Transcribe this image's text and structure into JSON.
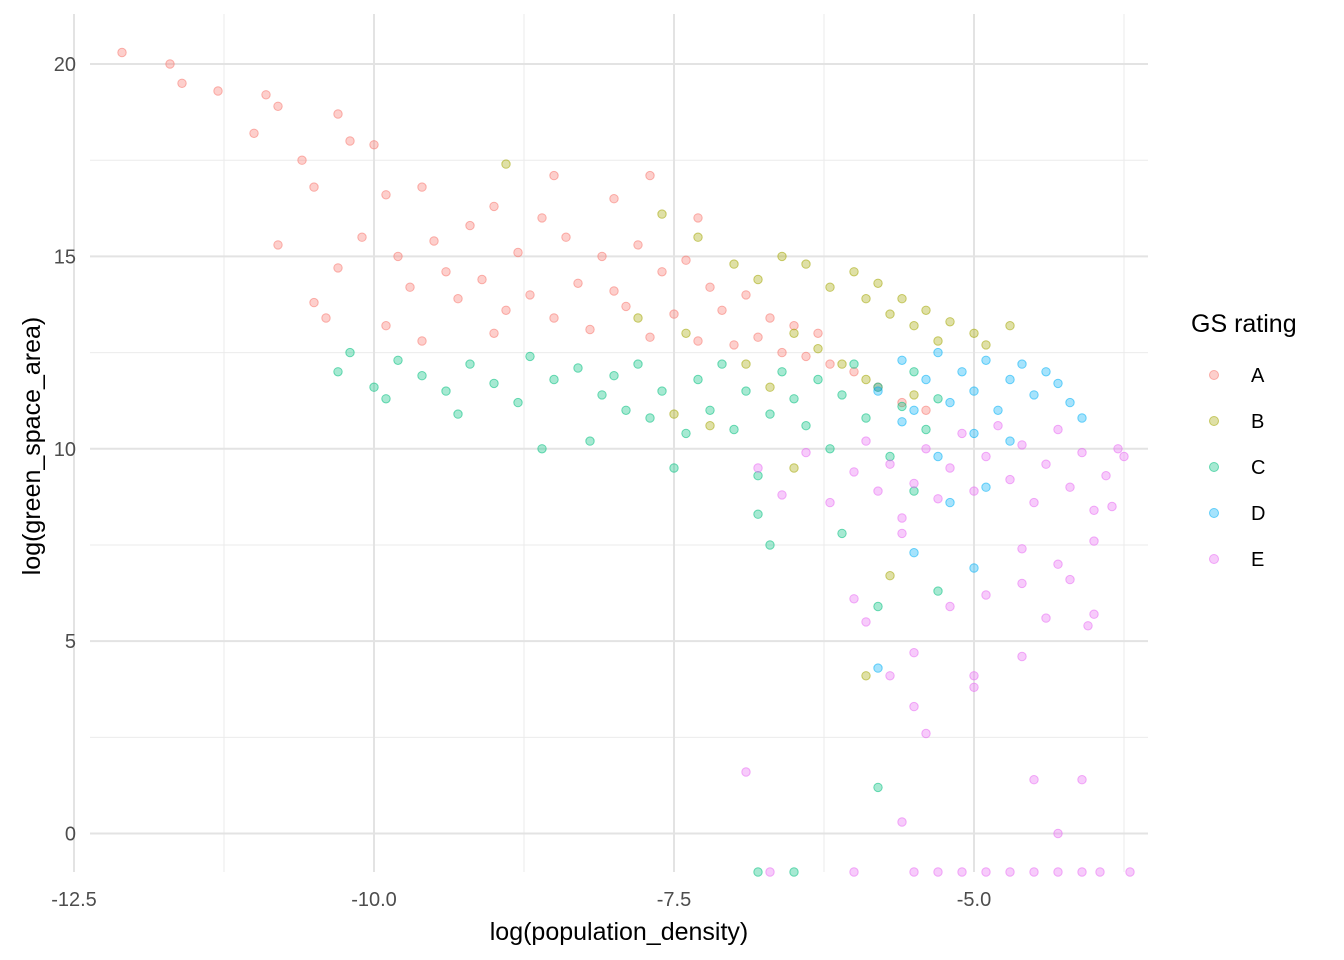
{
  "chart_data": {
    "type": "scatter",
    "xlabel": "log(population_density)",
    "ylabel": "log(green_space_area)",
    "xlim": [
      -12.6,
      -3.55
    ],
    "ylim": [
      -1.0,
      21.3
    ],
    "x_ticks": [
      -12.5,
      -10.0,
      -7.5,
      -5.0
    ],
    "x_tick_labels": [
      "-12.5",
      "-10.0",
      "-7.5",
      "-5.0"
    ],
    "y_ticks": [
      0,
      5,
      10,
      15,
      20
    ],
    "y_tick_labels": [
      "0",
      "5",
      "10",
      "15",
      "20"
    ],
    "grid": true,
    "legend_title": "GS rating",
    "legend_position": "right",
    "point_alpha": 0.35,
    "series": [
      {
        "name": "A",
        "color": "#F8766D",
        "points": [
          [
            -12.1,
            20.3
          ],
          [
            -11.7,
            20.0
          ],
          [
            -11.6,
            19.5
          ],
          [
            -11.3,
            19.3
          ],
          [
            -11.0,
            18.2
          ],
          [
            -10.9,
            19.2
          ],
          [
            -10.8,
            18.9
          ],
          [
            -10.8,
            15.3
          ],
          [
            -10.6,
            17.5
          ],
          [
            -10.5,
            16.8
          ],
          [
            -10.3,
            18.7
          ],
          [
            -10.2,
            18.0
          ],
          [
            -10.0,
            17.9
          ],
          [
            -10.1,
            15.5
          ],
          [
            -10.3,
            14.7
          ],
          [
            -10.5,
            13.8
          ],
          [
            -9.9,
            16.6
          ],
          [
            -9.8,
            15.0
          ],
          [
            -9.7,
            14.2
          ],
          [
            -9.6,
            16.8
          ],
          [
            -9.5,
            15.4
          ],
          [
            -9.4,
            14.6
          ],
          [
            -9.3,
            13.9
          ],
          [
            -9.2,
            15.8
          ],
          [
            -9.1,
            14.4
          ],
          [
            -9.0,
            16.3
          ],
          [
            -8.9,
            13.6
          ],
          [
            -8.8,
            15.1
          ],
          [
            -8.7,
            14.0
          ],
          [
            -8.6,
            16.0
          ],
          [
            -8.5,
            13.4
          ],
          [
            -8.4,
            15.5
          ],
          [
            -8.3,
            14.3
          ],
          [
            -8.2,
            13.1
          ],
          [
            -8.1,
            15.0
          ],
          [
            -8.0,
            14.1
          ],
          [
            -7.9,
            13.7
          ],
          [
            -7.8,
            15.3
          ],
          [
            -7.7,
            12.9
          ],
          [
            -7.6,
            14.6
          ],
          [
            -7.5,
            13.5
          ],
          [
            -7.4,
            14.9
          ],
          [
            -7.3,
            12.8
          ],
          [
            -7.2,
            14.2
          ],
          [
            -7.1,
            13.6
          ],
          [
            -7.0,
            12.7
          ],
          [
            -6.9,
            14.0
          ],
          [
            -6.8,
            12.9
          ],
          [
            -6.7,
            13.4
          ],
          [
            -6.6,
            12.5
          ],
          [
            -6.5,
            13.2
          ],
          [
            -6.4,
            12.4
          ],
          [
            -6.3,
            13.0
          ],
          [
            -6.2,
            12.2
          ],
          [
            -6.0,
            12.0
          ],
          [
            -5.8,
            11.6
          ],
          [
            -5.6,
            11.2
          ],
          [
            -5.4,
            11.0
          ],
          [
            -9.6,
            12.8
          ],
          [
            -9.0,
            13.0
          ],
          [
            -8.5,
            17.1
          ],
          [
            -8.0,
            16.5
          ],
          [
            -7.7,
            17.1
          ],
          [
            -7.3,
            16.0
          ],
          [
            -9.9,
            13.2
          ],
          [
            -10.4,
            13.4
          ]
        ]
      },
      {
        "name": "B",
        "color": "#A3A500",
        "points": [
          [
            -8.9,
            17.4
          ],
          [
            -7.6,
            16.1
          ],
          [
            -7.3,
            15.5
          ],
          [
            -7.0,
            14.8
          ],
          [
            -6.8,
            14.4
          ],
          [
            -6.6,
            15.0
          ],
          [
            -6.4,
            14.8
          ],
          [
            -6.2,
            14.2
          ],
          [
            -6.0,
            14.6
          ],
          [
            -5.9,
            13.9
          ],
          [
            -5.8,
            14.3
          ],
          [
            -5.7,
            13.5
          ],
          [
            -5.6,
            13.9
          ],
          [
            -5.5,
            13.2
          ],
          [
            -5.4,
            13.6
          ],
          [
            -5.3,
            12.8
          ],
          [
            -5.2,
            13.3
          ],
          [
            -5.0,
            13.0
          ],
          [
            -4.9,
            12.7
          ],
          [
            -4.7,
            13.2
          ],
          [
            -6.5,
            13.0
          ],
          [
            -6.3,
            12.6
          ],
          [
            -6.1,
            12.2
          ],
          [
            -5.9,
            11.8
          ],
          [
            -7.8,
            13.4
          ],
          [
            -7.4,
            13.0
          ],
          [
            -7.2,
            10.6
          ],
          [
            -6.7,
            11.6
          ],
          [
            -6.5,
            9.5
          ],
          [
            -5.7,
            6.7
          ],
          [
            -5.9,
            4.1
          ],
          [
            -7.5,
            10.9
          ],
          [
            -6.9,
            12.2
          ],
          [
            -5.5,
            11.4
          ]
        ]
      },
      {
        "name": "C",
        "color": "#00BF7D",
        "points": [
          [
            -10.3,
            12.0
          ],
          [
            -10.2,
            12.5
          ],
          [
            -10.0,
            11.6
          ],
          [
            -9.9,
            11.3
          ],
          [
            -9.8,
            12.3
          ],
          [
            -9.6,
            11.9
          ],
          [
            -9.4,
            11.5
          ],
          [
            -9.3,
            10.9
          ],
          [
            -9.2,
            12.2
          ],
          [
            -9.0,
            11.7
          ],
          [
            -8.8,
            11.2
          ],
          [
            -8.7,
            12.4
          ],
          [
            -8.6,
            10.0
          ],
          [
            -8.5,
            11.8
          ],
          [
            -8.3,
            12.1
          ],
          [
            -8.2,
            10.2
          ],
          [
            -8.1,
            11.4
          ],
          [
            -8.0,
            11.9
          ],
          [
            -7.9,
            11.0
          ],
          [
            -7.8,
            12.2
          ],
          [
            -7.7,
            10.8
          ],
          [
            -7.6,
            11.5
          ],
          [
            -7.5,
            9.5
          ],
          [
            -7.4,
            10.4
          ],
          [
            -7.3,
            11.8
          ],
          [
            -7.2,
            11.0
          ],
          [
            -7.1,
            12.2
          ],
          [
            -7.0,
            10.5
          ],
          [
            -6.9,
            11.5
          ],
          [
            -6.8,
            9.3
          ],
          [
            -6.7,
            10.9
          ],
          [
            -6.6,
            12.0
          ],
          [
            -6.5,
            11.3
          ],
          [
            -6.4,
            10.6
          ],
          [
            -6.3,
            11.8
          ],
          [
            -6.2,
            10.0
          ],
          [
            -6.1,
            11.4
          ],
          [
            -6.0,
            12.2
          ],
          [
            -5.9,
            10.8
          ],
          [
            -5.8,
            11.6
          ],
          [
            -5.7,
            9.8
          ],
          [
            -5.6,
            11.1
          ],
          [
            -5.5,
            12.0
          ],
          [
            -5.4,
            10.5
          ],
          [
            -5.3,
            11.3
          ],
          [
            -6.8,
            8.3
          ],
          [
            -6.7,
            7.5
          ],
          [
            -6.1,
            7.8
          ],
          [
            -5.8,
            5.9
          ],
          [
            -5.3,
            6.3
          ],
          [
            -5.8,
            1.2
          ],
          [
            -6.8,
            -1.0
          ],
          [
            -6.5,
            -1.0
          ],
          [
            -5.5,
            8.9
          ]
        ]
      },
      {
        "name": "D",
        "color": "#00B0F6",
        "points": [
          [
            -5.8,
            11.5
          ],
          [
            -5.6,
            12.3
          ],
          [
            -5.5,
            11.0
          ],
          [
            -5.4,
            11.8
          ],
          [
            -5.3,
            12.5
          ],
          [
            -5.2,
            11.2
          ],
          [
            -5.1,
            12.0
          ],
          [
            -5.0,
            11.5
          ],
          [
            -4.9,
            12.3
          ],
          [
            -4.8,
            11.0
          ],
          [
            -4.7,
            11.8
          ],
          [
            -4.6,
            12.2
          ],
          [
            -4.5,
            11.4
          ],
          [
            -4.4,
            12.0
          ],
          [
            -4.3,
            11.7
          ],
          [
            -4.2,
            11.2
          ],
          [
            -4.1,
            10.8
          ],
          [
            -5.0,
            10.4
          ],
          [
            -5.3,
            9.8
          ],
          [
            -4.9,
            9.0
          ],
          [
            -5.5,
            7.3
          ],
          [
            -5.0,
            6.9
          ],
          [
            -5.8,
            4.3
          ],
          [
            -5.2,
            8.6
          ],
          [
            -4.7,
            10.2
          ],
          [
            -5.6,
            10.7
          ]
        ]
      },
      {
        "name": "E",
        "color": "#E76BF3",
        "points": [
          [
            -6.8,
            9.5
          ],
          [
            -6.6,
            8.8
          ],
          [
            -6.4,
            9.9
          ],
          [
            -6.2,
            8.6
          ],
          [
            -6.0,
            9.4
          ],
          [
            -5.9,
            10.2
          ],
          [
            -5.8,
            8.9
          ],
          [
            -5.7,
            9.6
          ],
          [
            -5.6,
            8.2
          ],
          [
            -5.5,
            9.1
          ],
          [
            -5.4,
            10.0
          ],
          [
            -5.3,
            8.7
          ],
          [
            -5.2,
            9.5
          ],
          [
            -5.1,
            10.4
          ],
          [
            -5.0,
            8.9
          ],
          [
            -4.9,
            9.8
          ],
          [
            -4.8,
            10.6
          ],
          [
            -4.7,
            9.2
          ],
          [
            -4.6,
            10.1
          ],
          [
            -4.5,
            8.6
          ],
          [
            -4.4,
            9.6
          ],
          [
            -4.3,
            10.5
          ],
          [
            -4.2,
            9.0
          ],
          [
            -4.1,
            9.9
          ],
          [
            -4.0,
            8.4
          ],
          [
            -3.9,
            9.3
          ],
          [
            -3.8,
            10.0
          ],
          [
            -3.75,
            9.8
          ],
          [
            -3.85,
            8.5
          ],
          [
            -4.0,
            7.6
          ],
          [
            -4.3,
            7.0
          ],
          [
            -4.6,
            6.5
          ],
          [
            -4.9,
            6.2
          ],
          [
            -5.2,
            5.9
          ],
          [
            -4.4,
            5.6
          ],
          [
            -4.05,
            5.4
          ],
          [
            -4.0,
            5.7
          ],
          [
            -4.6,
            4.6
          ],
          [
            -5.0,
            4.1
          ],
          [
            -5.0,
            3.8
          ],
          [
            -5.5,
            4.7
          ],
          [
            -5.5,
            3.3
          ],
          [
            -5.4,
            2.6
          ],
          [
            -5.6,
            0.3
          ],
          [
            -4.5,
            1.4
          ],
          [
            -4.1,
            1.4
          ],
          [
            -4.3,
            0.0
          ],
          [
            -6.0,
            6.1
          ],
          [
            -5.9,
            5.5
          ],
          [
            -5.7,
            4.1
          ],
          [
            -6.9,
            1.6
          ],
          [
            -5.5,
            -1.0
          ],
          [
            -5.3,
            -1.0
          ],
          [
            -5.1,
            -1.0
          ],
          [
            -4.9,
            -1.0
          ],
          [
            -4.7,
            -1.0
          ],
          [
            -4.5,
            -1.0
          ],
          [
            -4.3,
            -1.0
          ],
          [
            -4.1,
            -1.0
          ],
          [
            -3.95,
            -1.0
          ],
          [
            -3.7,
            -1.0
          ],
          [
            -6.0,
            -1.0
          ],
          [
            -6.7,
            -1.0
          ],
          [
            -4.6,
            7.4
          ],
          [
            -4.2,
            6.6
          ],
          [
            -5.6,
            7.8
          ]
        ]
      }
    ]
  }
}
